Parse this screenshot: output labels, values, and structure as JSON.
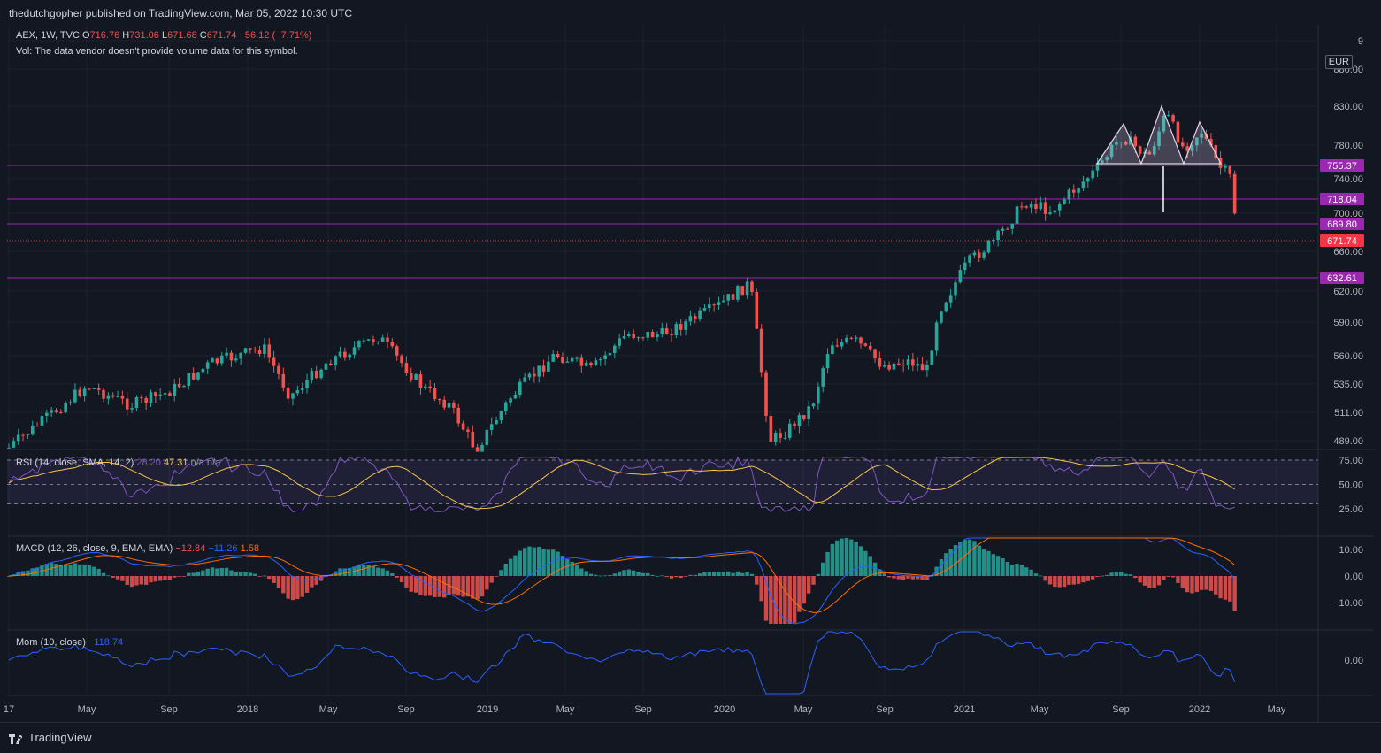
{
  "header": {
    "published_text": "thedutchgopher published on TradingView.com, Mar 05, 2022 10:30 UTC"
  },
  "legend": {
    "symbol": "AEX, 1W, TVC",
    "o_label": "O",
    "o_value": "716.76",
    "h_label": "H",
    "h_value": "731.06",
    "l_label": "L",
    "l_value": "671.68",
    "c_label": "C",
    "c_value": "671.74",
    "change": "−56.12 (−7.71%)",
    "vol_note": "Vol: The data vendor doesn't provide volume data for this symbol."
  },
  "currency_badge": "EUR",
  "price_axis": {
    "ticks": [
      "9",
      "880.00",
      "830.00",
      "780.00",
      "740.00",
      "700.00",
      "660.00",
      "620.00",
      "590.00",
      "560.00",
      "535.00",
      "511.00",
      "489.00"
    ],
    "levels": [
      {
        "label": "755.37",
        "color": "#9c27b0"
      },
      {
        "label": "718.04",
        "color": "#9c27b0"
      },
      {
        "label": "689.80",
        "color": "#9c27b0"
      },
      {
        "label": "671.74",
        "color": "#f23645"
      },
      {
        "label": "632.61",
        "color": "#9c27b0"
      }
    ]
  },
  "rsi": {
    "title": "RSI (14, close, SMA, 14, 2)",
    "value1": "28.20",
    "value2": "47.31",
    "tail": "n/a n/a",
    "ticks": [
      "75.00",
      "50.00",
      "25.00"
    ]
  },
  "macd": {
    "title": "MACD (12, 26, close, 9, EMA, EMA)",
    "value1": "−12.84",
    "value2": "−11.26",
    "value3": "1.58",
    "ticks": [
      "10.00",
      "0.00",
      "−10.00"
    ]
  },
  "mom": {
    "title": "Mom (10, close)",
    "value": "−118.74",
    "ticks": [
      "0.00"
    ]
  },
  "time_axis": {
    "labels": [
      "17",
      "May",
      "Sep",
      "2018",
      "May",
      "Sep",
      "2019",
      "May",
      "Sep",
      "2020",
      "May",
      "Sep",
      "2021",
      "May",
      "Sep",
      "2022",
      "May"
    ]
  },
  "footer": {
    "brand": "TradingView"
  },
  "colors": {
    "up": "#26a69a",
    "down": "#ef5350",
    "rsi": "#7e57c2",
    "rsi_ma": "#f7c548",
    "macd": "#2962ff",
    "signal": "#ff6d00",
    "mom": "#2962ff",
    "level": "#9c27b0"
  }
}
